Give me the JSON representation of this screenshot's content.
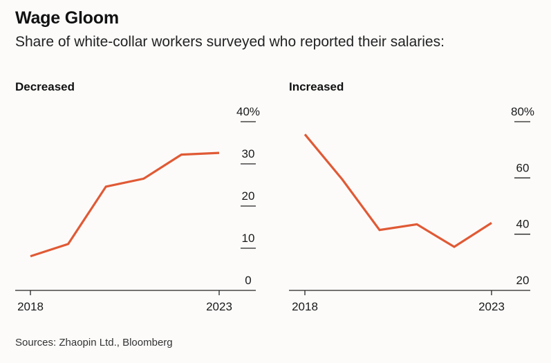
{
  "title": "Wage Gloom",
  "subtitle": "Share of white-collar workers surveyed who reported their salaries:",
  "source": "Sources: Zhaopin Ltd., Bloomberg",
  "colors": {
    "line": "#e05a35",
    "axis": "#222222",
    "background": "#fcfbfa"
  },
  "chart_data": [
    {
      "type": "line",
      "title": "Decreased",
      "x": [
        2018,
        2019,
        2020,
        2021,
        2022,
        2023
      ],
      "values": [
        8.1,
        11,
        24.6,
        26.5,
        32.2,
        32.6
      ],
      "xlabel": "",
      "ylabel": "",
      "ylim": [
        0,
        40
      ],
      "yticks": [
        0,
        10,
        20,
        30,
        40
      ],
      "ytick_labels": [
        "0",
        "10",
        "20",
        "30",
        "40%"
      ],
      "xtick_labels": [
        "2018",
        "2023"
      ],
      "x_label_positions": [
        2018,
        2023
      ]
    },
    {
      "type": "line",
      "title": "Increased",
      "x": [
        2018,
        2019,
        2020,
        2021,
        2022,
        2023
      ],
      "values": [
        75.5,
        59.5,
        41.5,
        43.5,
        35.5,
        44
      ],
      "xlabel": "",
      "ylabel": "",
      "ylim": [
        20,
        80
      ],
      "yticks": [
        20,
        40,
        60,
        80
      ],
      "ytick_labels": [
        "20",
        "40",
        "60",
        "80%"
      ],
      "xtick_labels": [
        "2018",
        "2023"
      ],
      "x_label_positions": [
        2018,
        2023
      ]
    }
  ]
}
